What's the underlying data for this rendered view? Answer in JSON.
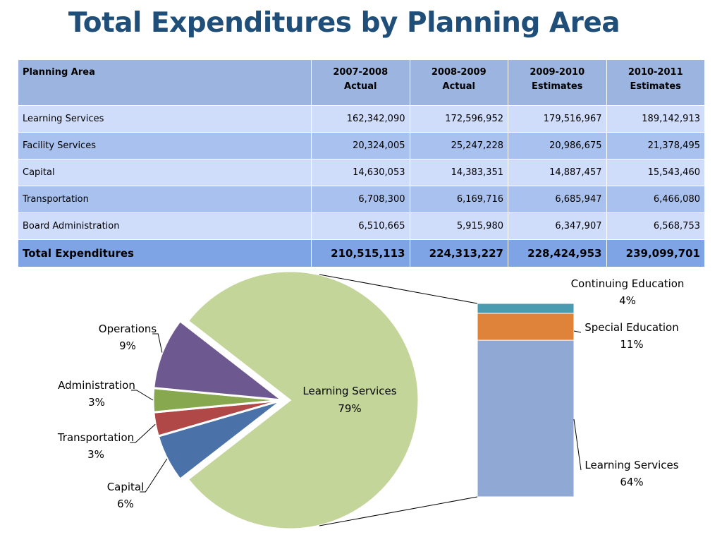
{
  "title": "Total Expenditures by Planning Area",
  "table": {
    "headers": [
      {
        "line1": "Planning Area",
        "line2": ""
      },
      {
        "line1": "2007-2008",
        "line2": "Actual"
      },
      {
        "line1": "2008-2009",
        "line2": "Actual"
      },
      {
        "line1": "2009-2010",
        "line2": "Estimates"
      },
      {
        "line1": "2010-2011",
        "line2": "Estimates"
      }
    ],
    "rows": [
      {
        "name": "Learning Services",
        "values": [
          "162,342,090",
          "172,596,952",
          "179,516,967",
          "189,142,913"
        ]
      },
      {
        "name": "Facility Services",
        "values": [
          "20,324,005",
          "25,247,228",
          "20,986,675",
          "21,378,495"
        ]
      },
      {
        "name": "Capital",
        "values": [
          "14,630,053",
          "14,383,351",
          "14,887,457",
          "15,543,460"
        ]
      },
      {
        "name": "Transportation",
        "values": [
          "6,708,300",
          "6,169,716",
          "6,685,947",
          "6,466,080"
        ]
      },
      {
        "name": "Board Administration",
        "values": [
          "6,510,665",
          "5,915,980",
          "6,347,907",
          "6,568,753"
        ]
      }
    ],
    "total": {
      "name": "Total Expenditures",
      "values": [
        "210,515,113",
        "224,313,227",
        "228,424,953",
        "239,099,701"
      ]
    }
  },
  "chart_data": {
    "type": "pie",
    "pie": {
      "slices": [
        {
          "label": "Learning Services",
          "value": 79,
          "pct": "79%",
          "color": "#c4d59a",
          "exploded": false
        },
        {
          "label": "Capital",
          "value": 6,
          "pct": "6%",
          "color": "#4a72a8",
          "exploded": true
        },
        {
          "label": "Transportation",
          "value": 3,
          "pct": "3%",
          "color": "#b04848",
          "exploded": true
        },
        {
          "label": "Administration",
          "value": 3,
          "pct": "3%",
          "color": "#88a850",
          "exploded": true
        },
        {
          "label": "Operations",
          "value": 9,
          "pct": "9%",
          "color": "#6e5890",
          "exploded": true
        }
      ]
    },
    "breakdown_bar": {
      "of": "Learning Services",
      "segments": [
        {
          "label": "Learning Services",
          "value": 64,
          "pct": "64%",
          "color": "#90a9d4"
        },
        {
          "label": "Special Education",
          "value": 11,
          "pct": "11%",
          "color": "#e0833a"
        },
        {
          "label": "Continuing Education",
          "value": 4,
          "pct": "4%",
          "color": "#4a9bb0"
        }
      ]
    }
  }
}
